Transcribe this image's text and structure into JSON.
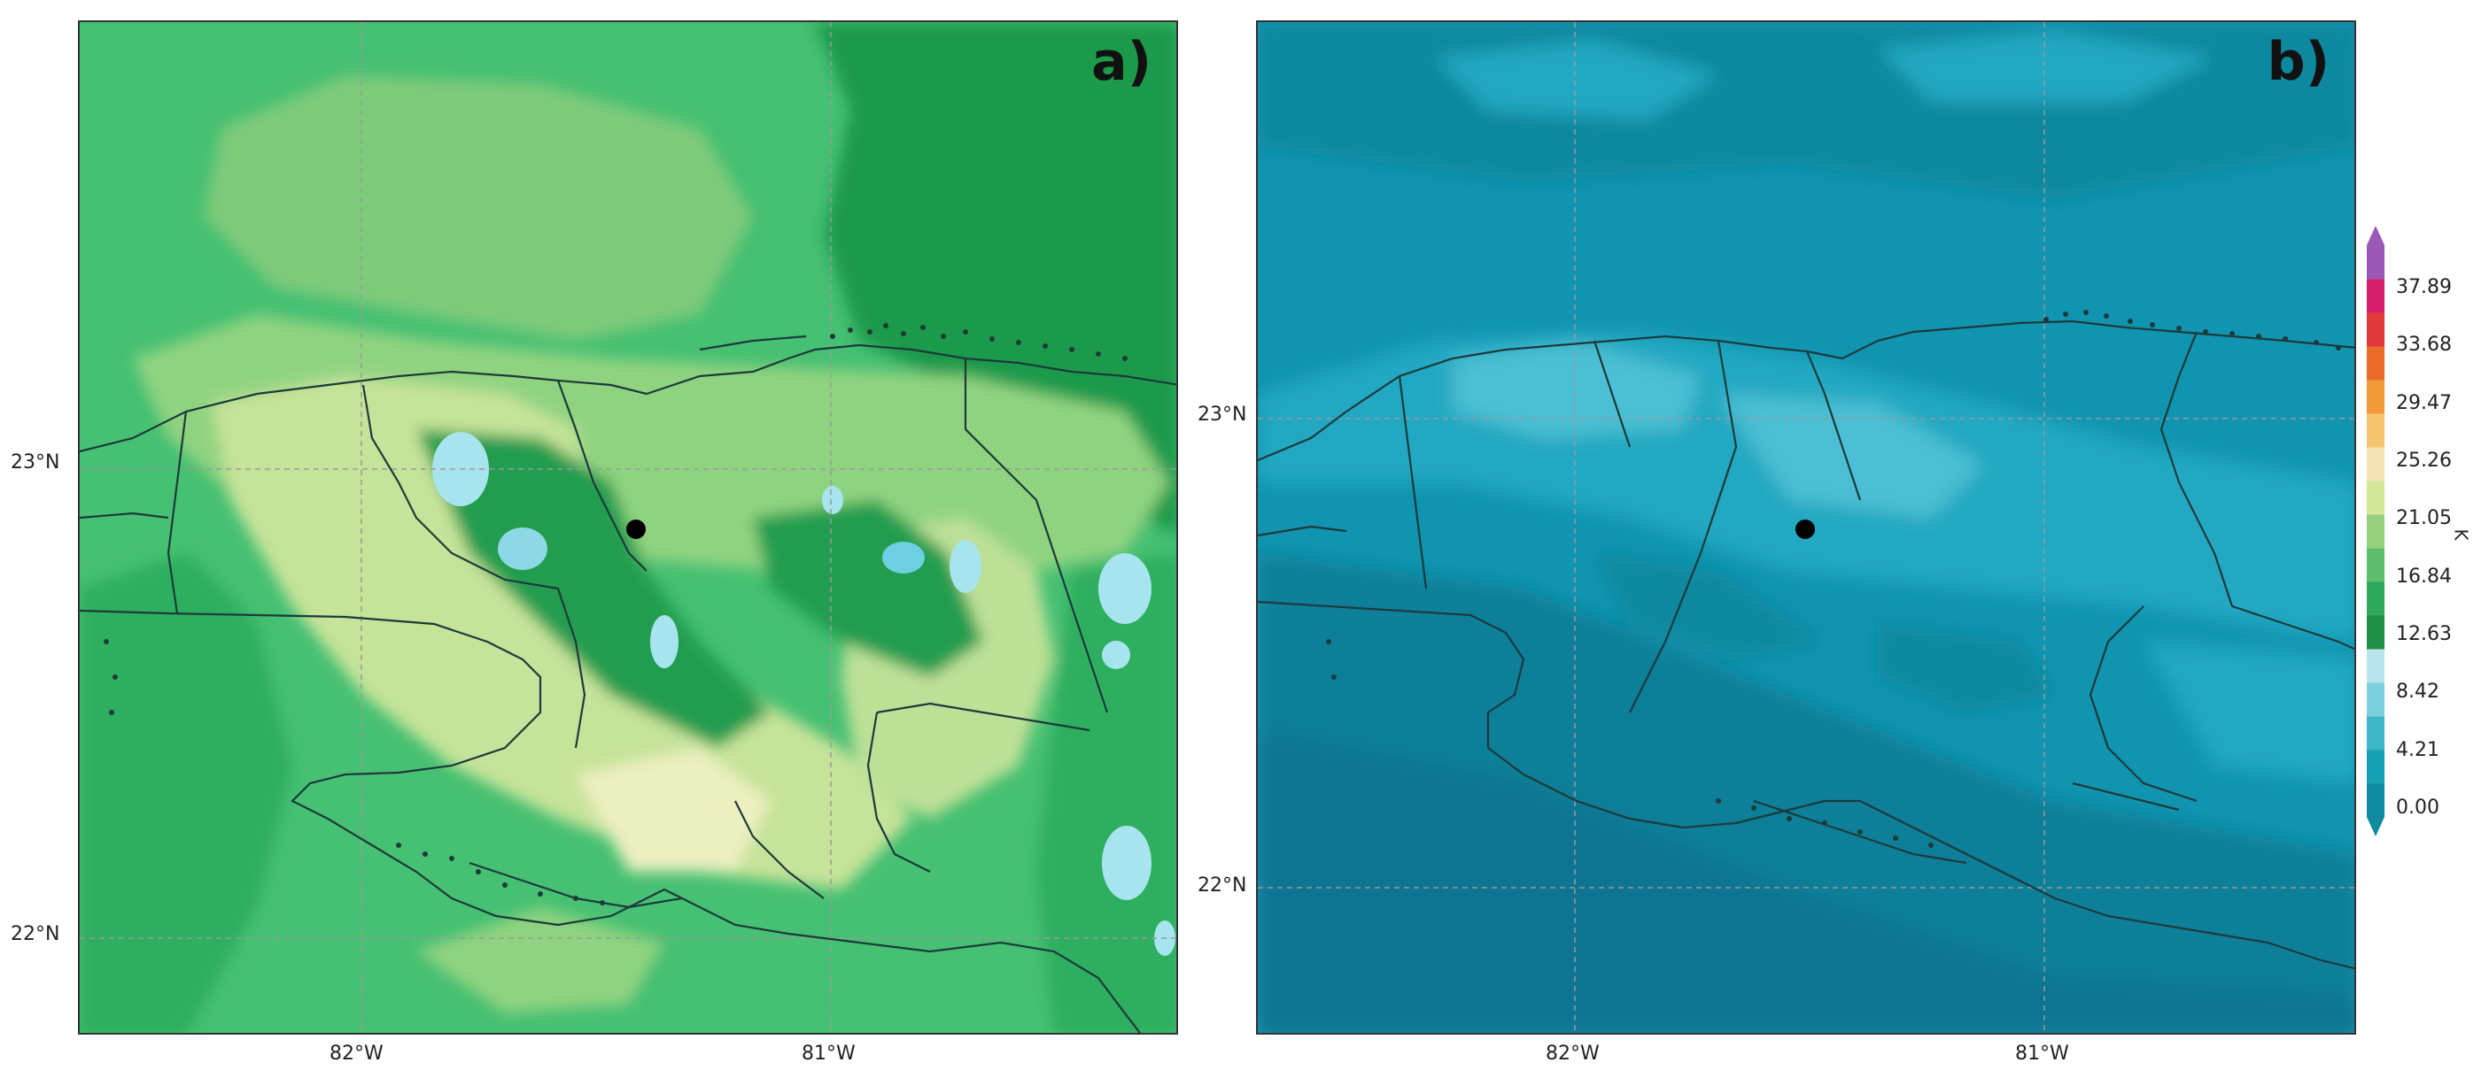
{
  "panels": [
    {
      "label": "a)",
      "lat_labels": [
        "23°N",
        "22°N"
      ],
      "lon_labels": [
        "82°W",
        "81°W"
      ]
    },
    {
      "label": "b)",
      "lat_labels": [
        "23°N",
        "22°N"
      ],
      "lon_labels": [
        "82°W",
        "81°W"
      ]
    }
  ],
  "colorbar": {
    "unit": "K",
    "ticks": [
      "37.89",
      "33.68",
      "29.47",
      "25.26",
      "21.05",
      "16.84",
      "12.63",
      "8.42",
      "4.21",
      "0.00"
    ],
    "colors": [
      "#0f8a9e",
      "#16a0b4",
      "#3cb6c8",
      "#7ccfdc",
      "#b8e6ec",
      "#1f8f45",
      "#2ea85a",
      "#5dbf6e",
      "#96d07f",
      "#d3e69a",
      "#f3e5b5",
      "#f6c46e",
      "#f29a3a",
      "#ea6b2a",
      "#e23a3a",
      "#d81f6e",
      "#9b59b6"
    ],
    "extend": "both"
  },
  "palette": {
    "panel_a": [
      "#1f9a4c",
      "#3fb769",
      "#62c577",
      "#8fd380",
      "#bde097",
      "#e6efbf",
      "#a7e4ee",
      "#6fcfe2"
    ],
    "panel_b": [
      "#0b7f99",
      "#1094b0",
      "#21a8c2",
      "#4bbfd3",
      "#8fd7e5"
    ]
  },
  "marker": {
    "lon_deg": -81.42,
    "lat_deg": 22.83,
    "color": "#000000"
  }
}
